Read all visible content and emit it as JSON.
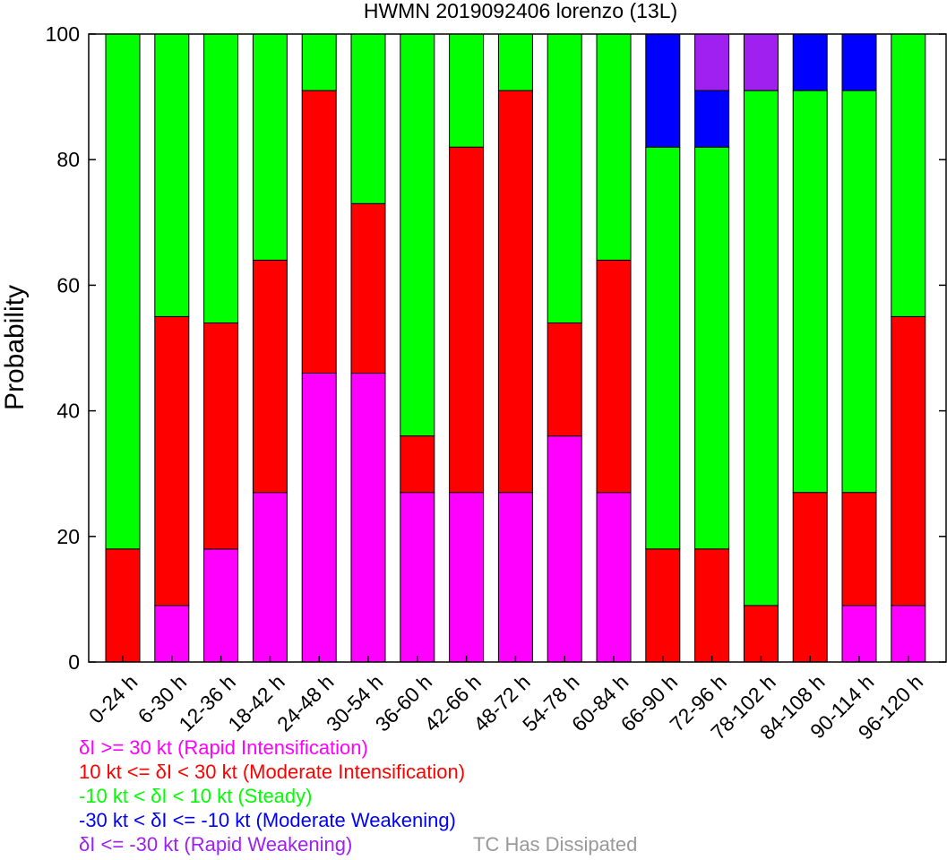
{
  "chart_data": {
    "type": "bar",
    "stacked": true,
    "title": "HWMN 2019092406 lorenzo (13L)",
    "xlabel": "",
    "ylabel": "Probability",
    "ylim": [
      0,
      100
    ],
    "yticks": [
      0,
      20,
      40,
      60,
      80,
      100
    ],
    "grid": false,
    "legend_position": "bottom-left",
    "categories": [
      "0-24 h",
      "6-30 h",
      "12-36 h",
      "18-42 h",
      "24-48 h",
      "30-54 h",
      "36-60 h",
      "42-66 h",
      "48-72 h",
      "54-78 h",
      "60-84 h",
      "66-90 h",
      "72-96 h",
      "78-102 h",
      "84-108 h",
      "90-114 h",
      "96-120 h"
    ],
    "series": [
      {
        "name": "δI >= 30 kt (Rapid Intensification)",
        "color": "#ff00ff",
        "values": [
          0,
          9,
          18,
          27,
          46,
          46,
          27,
          27,
          27,
          36,
          27,
          0,
          0,
          0,
          0,
          9,
          9
        ]
      },
      {
        "name": "10 kt <= δI < 30 kt (Moderate Intensification)",
        "color": "#ff0000",
        "values": [
          18,
          46,
          36,
          37,
          45,
          27,
          9,
          55,
          64,
          18,
          37,
          18,
          18,
          9,
          27,
          18,
          46
        ]
      },
      {
        "name": "-10 kt < δI < 10 kt (Steady)",
        "color": "#00ff00",
        "values": [
          82,
          45,
          46,
          36,
          9,
          27,
          64,
          18,
          9,
          46,
          36,
          64,
          64,
          82,
          64,
          64,
          45
        ]
      },
      {
        "name": "-30 kt < δI <= -10 kt (Moderate Weakening)",
        "color": "#0000ff",
        "values": [
          0,
          0,
          0,
          0,
          0,
          0,
          0,
          0,
          0,
          0,
          0,
          18,
          9,
          0,
          9,
          9,
          0
        ]
      },
      {
        "name": "δI <= -30 kt (Rapid Weakening)",
        "color": "#a020f0",
        "values": [
          0,
          0,
          0,
          0,
          0,
          0,
          0,
          0,
          0,
          0,
          0,
          0,
          9,
          9,
          0,
          0,
          0
        ]
      }
    ],
    "extra_legend": {
      "label": "TC Has Dissipated",
      "color": "#999999"
    }
  }
}
